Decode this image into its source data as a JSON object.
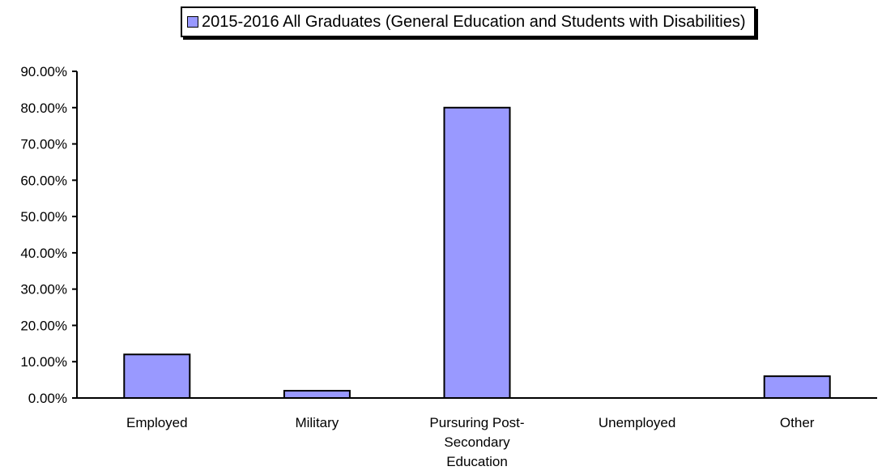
{
  "chart_data": {
    "type": "bar",
    "categories": [
      "Employed",
      "Military",
      "Pursuring Post-Secondary Education",
      "Unemployed",
      "Other"
    ],
    "category_label_lines": [
      [
        "Employed"
      ],
      [
        "Military"
      ],
      [
        "Pursuring Post-",
        "Secondary",
        "Education"
      ],
      [
        "Unemployed"
      ],
      [
        "Other"
      ]
    ],
    "series": [
      {
        "name": "2015-2016 All Graduates (General Education and Students with Disabilities)",
        "values": [
          12.0,
          2.0,
          80.0,
          0.0,
          6.0
        ]
      }
    ],
    "ylim": [
      0,
      90
    ],
    "yticks": [
      0,
      10,
      20,
      30,
      40,
      50,
      60,
      70,
      80,
      90
    ],
    "ytick_labels": [
      "0.00%",
      "10.00%",
      "20.00%",
      "30.00%",
      "40.00%",
      "50.00%",
      "60.00%",
      "70.00%",
      "80.00%",
      "90.00%"
    ],
    "grid": false,
    "legend_position": "top-right",
    "bar_color": "#9999ff"
  }
}
